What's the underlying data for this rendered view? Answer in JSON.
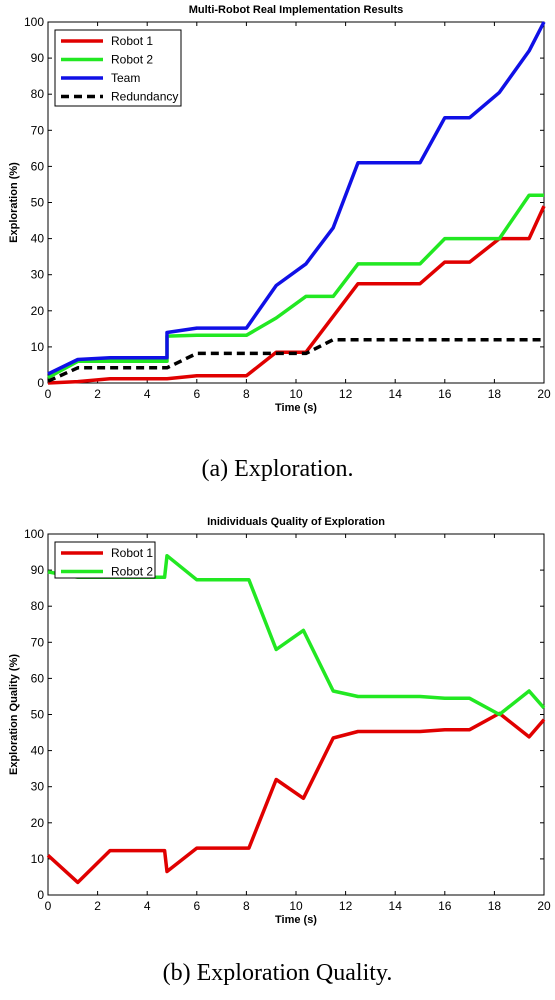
{
  "chart_data": [
    {
      "type": "line",
      "title": "Multi-Robot Real Implementation Results",
      "xlabel": "Time (s)",
      "ylabel": "Exploration (%)",
      "xlim": [
        0,
        20
      ],
      "ylim": [
        0,
        100
      ],
      "xticks": [
        0,
        2,
        4,
        6,
        8,
        10,
        12,
        14,
        16,
        18,
        20
      ],
      "yticks": [
        0,
        10,
        20,
        30,
        40,
        50,
        60,
        70,
        80,
        90,
        100
      ],
      "legend_position": "top-left",
      "caption": "(a)  Exploration.",
      "series": [
        {
          "name": "Robot 1",
          "color": "#e00000",
          "dash": false,
          "points": [
            [
              0,
              0
            ],
            [
              1.2,
              0.4
            ],
            [
              2.5,
              1.2
            ],
            [
              4.8,
              1.2
            ],
            [
              6,
              2
            ],
            [
              8,
              2
            ],
            [
              9.2,
              8.5
            ],
            [
              10.4,
              8.5
            ],
            [
              12.5,
              27.5
            ],
            [
              15,
              27.5
            ],
            [
              16,
              33.5
            ],
            [
              17,
              33.5
            ],
            [
              18.2,
              40
            ],
            [
              19.4,
              40
            ],
            [
              20,
              49
            ]
          ]
        },
        {
          "name": "Robot 2",
          "color": "#22e822",
          "dash": false,
          "points": [
            [
              0,
              1.5
            ],
            [
              1.2,
              6
            ],
            [
              2.5,
              6
            ],
            [
              4.8,
              6
            ],
            [
              4.8,
              13
            ],
            [
              6,
              13.2
            ],
            [
              8,
              13.2
            ],
            [
              9.2,
              18
            ],
            [
              10.4,
              24
            ],
            [
              11.5,
              24
            ],
            [
              12.5,
              33
            ],
            [
              15,
              33
            ],
            [
              16,
              40
            ],
            [
              18.2,
              40
            ],
            [
              19.4,
              52
            ],
            [
              20,
              52
            ]
          ]
        },
        {
          "name": "Team",
          "color": "#1010e6",
          "dash": false,
          "points": [
            [
              0,
              2.5
            ],
            [
              1.2,
              6.5
            ],
            [
              2.5,
              7
            ],
            [
              4.8,
              7
            ],
            [
              4.8,
              14
            ],
            [
              6,
              15.2
            ],
            [
              8,
              15.2
            ],
            [
              9.2,
              27
            ],
            [
              10.4,
              33
            ],
            [
              11.5,
              43
            ],
            [
              12.5,
              61
            ],
            [
              15,
              61
            ],
            [
              16,
              73.5
            ],
            [
              17,
              73.5
            ],
            [
              18.2,
              80.5
            ],
            [
              19.4,
              92
            ],
            [
              20,
              100
            ]
          ]
        },
        {
          "name": "Redundancy",
          "color": "#000000",
          "dash": true,
          "points": [
            [
              0,
              0.5
            ],
            [
              1.2,
              4.2
            ],
            [
              2.5,
              4.2
            ],
            [
              4.8,
              4.2
            ],
            [
              6,
              8.2
            ],
            [
              8,
              8.2
            ],
            [
              10.4,
              8.2
            ],
            [
              11.5,
              12
            ],
            [
              20,
              12
            ]
          ]
        }
      ]
    },
    {
      "type": "line",
      "title": "Inidividuals Quality of Exploration",
      "xlabel": "Time (s)",
      "ylabel": "Exploration Quality (%)",
      "xlim": [
        0,
        20
      ],
      "ylim": [
        0,
        100
      ],
      "xticks": [
        0,
        2,
        4,
        6,
        8,
        10,
        12,
        14,
        16,
        18,
        20
      ],
      "yticks": [
        0,
        10,
        20,
        30,
        40,
        50,
        60,
        70,
        80,
        90,
        100
      ],
      "legend_position": "top-left",
      "caption": "(b)  Exploration Quality.",
      "series": [
        {
          "name": "Robot 1",
          "color": "#e00000",
          "dash": false,
          "points": [
            [
              0,
              11
            ],
            [
              1.2,
              3.5
            ],
            [
              2.5,
              12.3
            ],
            [
              4.7,
              12.3
            ],
            [
              4.8,
              6.5
            ],
            [
              6,
              13
            ],
            [
              8.1,
              13
            ],
            [
              9.2,
              32
            ],
            [
              10.3,
              26.8
            ],
            [
              11.5,
              43.5
            ],
            [
              12.5,
              45.3
            ],
            [
              15,
              45.3
            ],
            [
              16,
              45.8
            ],
            [
              17,
              45.8
            ],
            [
              18.2,
              50.3
            ],
            [
              19.4,
              43.8
            ],
            [
              20,
              48.6
            ]
          ]
        },
        {
          "name": "Robot 2",
          "color": "#22e822",
          "dash": false,
          "points": [
            [
              0,
              89.5
            ],
            [
              1.2,
              88
            ],
            [
              2.5,
              88
            ],
            [
              4.7,
              88
            ],
            [
              4.8,
              94
            ],
            [
              6,
              87.3
            ],
            [
              8.1,
              87.3
            ],
            [
              9.2,
              68
            ],
            [
              10.3,
              73.3
            ],
            [
              11.5,
              56.5
            ],
            [
              12.5,
              55
            ],
            [
              15,
              55
            ],
            [
              16,
              54.5
            ],
            [
              17,
              54.5
            ],
            [
              18.2,
              50
            ],
            [
              19.4,
              56.5
            ],
            [
              20,
              51.8
            ]
          ]
        }
      ]
    }
  ]
}
